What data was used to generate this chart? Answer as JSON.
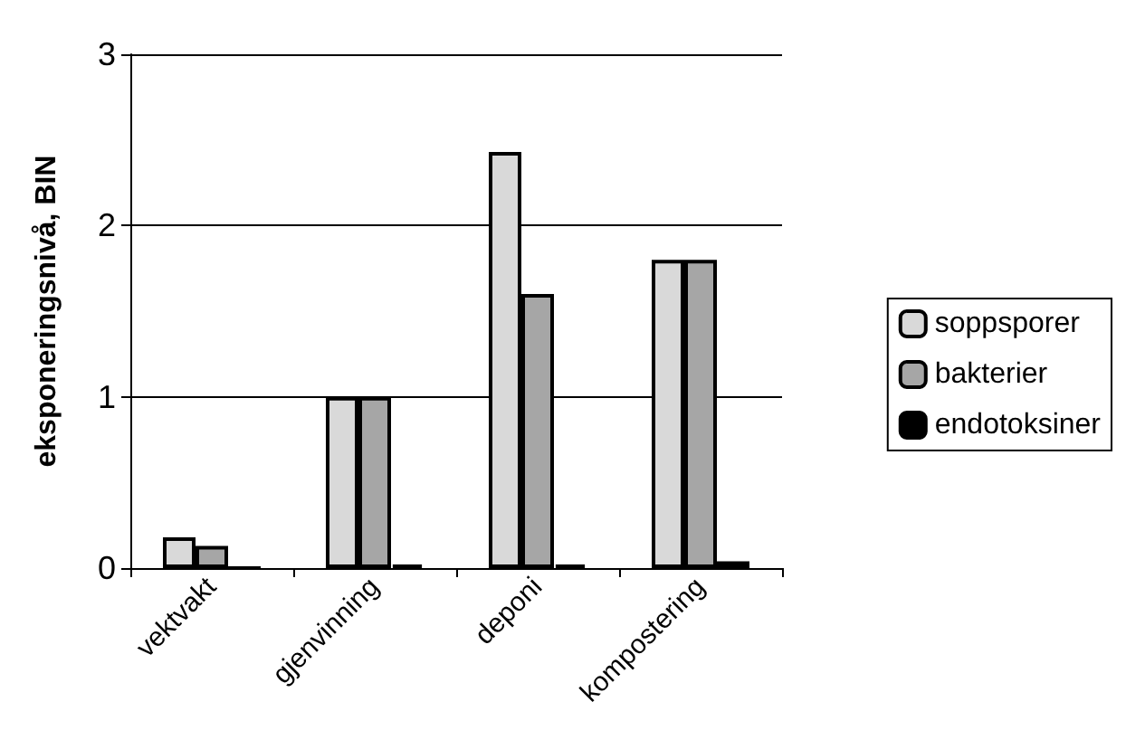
{
  "chart_data": {
    "type": "bar",
    "ylabel": "eksponeringsnivå, BIN",
    "categories": [
      "vektvakt",
      "gjenvinning",
      "deponi",
      "kompostering"
    ],
    "series": [
      {
        "name": "soppsporer",
        "color": "#d9d9d9",
        "values": [
          0.18,
          1.0,
          2.43,
          1.8
        ]
      },
      {
        "name": "bakterier",
        "color": "#a6a6a6",
        "values": [
          0.13,
          1.0,
          1.6,
          1.8
        ]
      },
      {
        "name": "endotoksiner",
        "color": "#000000",
        "values": [
          0,
          0.02,
          0.02,
          0.04
        ]
      }
    ],
    "ylim": [
      0,
      3
    ],
    "yticks": [
      0,
      1,
      2,
      3
    ],
    "grid": "y",
    "legend": "right"
  }
}
